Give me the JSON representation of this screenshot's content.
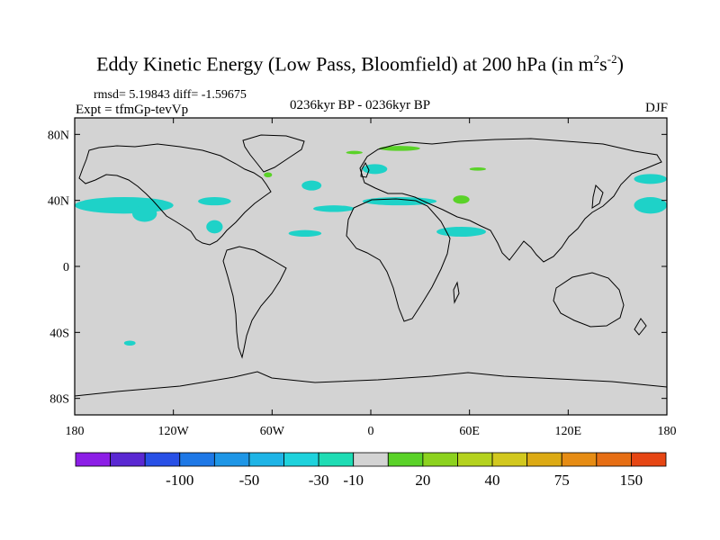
{
  "title": {
    "main": "Eddy Kinetic Energy (Low Pass, Bloomfield) at 200 hPa (in m",
    "sup1": "2",
    "mid": "s",
    "sup2": "-2",
    "end": ")"
  },
  "stats": "rmsd= 5.19843 diff= -1.59675",
  "expt": "Expt = tfmGp-tevVp",
  "period": "0236kyr BP - 0236kyr BP",
  "season": "DJF",
  "map": {
    "lat_ticks": [
      "80N",
      "40N",
      "0",
      "40S",
      "80S"
    ],
    "lon_ticks": [
      "180",
      "120W",
      "60W",
      "0",
      "60E",
      "120E",
      "180"
    ],
    "background_color": "#d3d3d3",
    "regions": [
      {
        "color": "#1ed2c8",
        "lon": [
          -180,
          -120
        ],
        "lat": [
          32,
          42
        ]
      },
      {
        "color": "#1ed2c8",
        "lon": [
          -145,
          -130
        ],
        "lat": [
          27,
          37
        ]
      },
      {
        "color": "#1ed2c8",
        "lon": [
          -105,
          -85
        ],
        "lat": [
          37,
          42
        ]
      },
      {
        "color": "#1ed2c8",
        "lon": [
          -100,
          -90
        ],
        "lat": [
          20,
          28
        ]
      },
      {
        "color": "#1ed2c8",
        "lon": [
          -42,
          -30
        ],
        "lat": [
          46,
          52
        ]
      },
      {
        "color": "#1ed2c8",
        "lon": [
          -35,
          -10
        ],
        "lat": [
          33,
          37
        ]
      },
      {
        "color": "#1ed2c8",
        "lon": [
          -50,
          -30
        ],
        "lat": [
          18,
          22
        ]
      },
      {
        "color": "#1ed2c8",
        "lon": [
          -5,
          10
        ],
        "lat": [
          56,
          62
        ]
      },
      {
        "color": "#1ed2c8",
        "lon": [
          -5,
          40
        ],
        "lat": [
          37,
          42
        ]
      },
      {
        "color": "#1ed2c8",
        "lon": [
          40,
          70
        ],
        "lat": [
          18,
          24
        ]
      },
      {
        "color": "#1ed2c8",
        "lon": [
          160,
          180
        ],
        "lat": [
          32,
          42
        ]
      },
      {
        "color": "#1ed2c8",
        "lon": [
          160,
          180
        ],
        "lat": [
          50,
          56
        ]
      },
      {
        "color": "#1ed2c8",
        "lon": [
          -150,
          -143
        ],
        "lat": [
          -45,
          -48
        ]
      },
      {
        "color": "#5ad228",
        "lon": [
          5,
          30
        ],
        "lat": [
          70,
          73
        ]
      },
      {
        "color": "#5ad228",
        "lon": [
          -15,
          -5
        ],
        "lat": [
          68,
          70
        ]
      },
      {
        "color": "#5ad228",
        "lon": [
          60,
          70
        ],
        "lat": [
          58,
          60
        ]
      },
      {
        "color": "#5ad228",
        "lon": [
          50,
          60
        ],
        "lat": [
          38,
          43
        ]
      },
      {
        "color": "#5ad228",
        "lon": [
          -65,
          -60
        ],
        "lat": [
          54,
          57
        ]
      }
    ]
  },
  "colorbar": {
    "colors": [
      "#8c1ee6",
      "#5a28d2",
      "#2850e6",
      "#1e78e6",
      "#1e96e6",
      "#1eb4e6",
      "#1ed2dc",
      "#1edcb4",
      "#d3d3d3",
      "#5ad228",
      "#8cd21e",
      "#b4d21e",
      "#d2c81e",
      "#dcaa14",
      "#e68c14",
      "#e66e14",
      "#e64614"
    ],
    "labels": [
      "-100",
      "-50",
      "-30",
      "-10",
      "20",
      "40",
      "75",
      "150"
    ]
  }
}
